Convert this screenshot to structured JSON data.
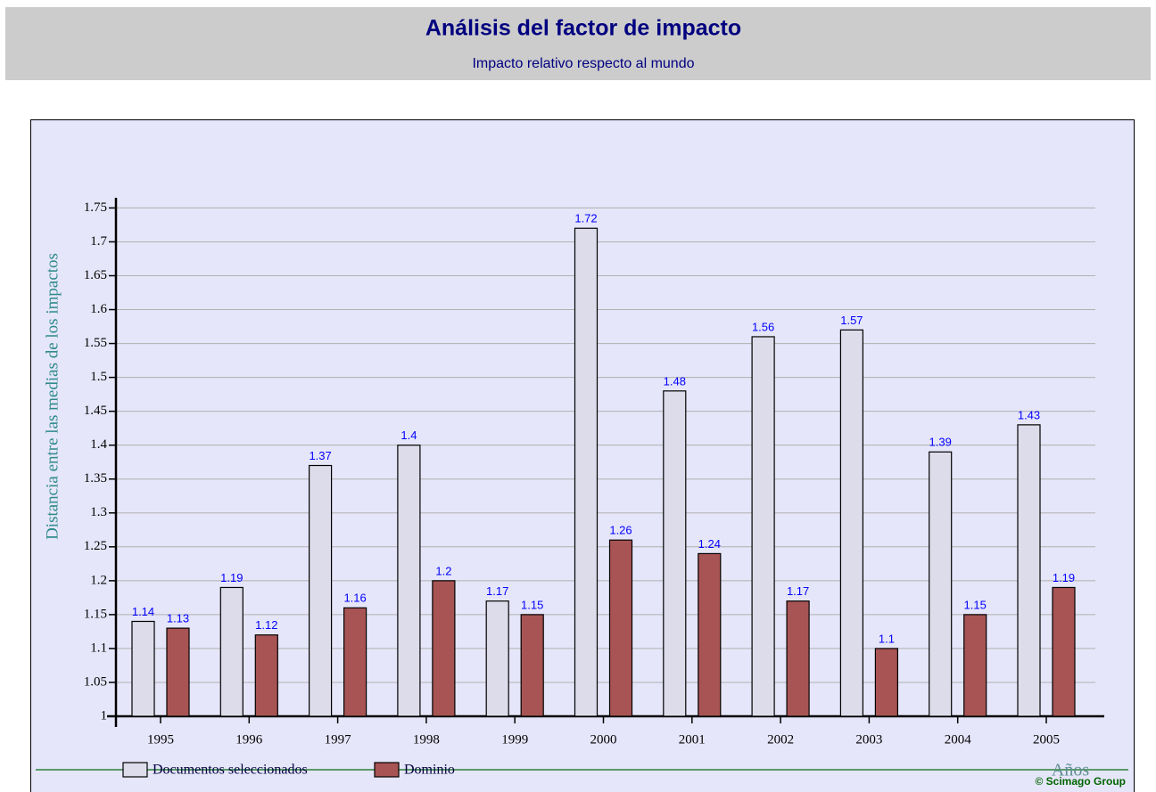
{
  "chart_data": {
    "type": "bar",
    "title": "Análisis del factor de impacto",
    "subtitle": "Impacto relativo respecto al mundo",
    "y_label": "Distancia entre las medias de los impactos",
    "x_label": "Años",
    "credit": "© Scimago Group",
    "categories": [
      "1995",
      "1996",
      "1997",
      "1998",
      "1999",
      "2000",
      "2001",
      "2002",
      "2003",
      "2004",
      "2005"
    ],
    "series": [
      {
        "name": "Documentos seleccionados",
        "color": "#dcdcea",
        "values": [
          1.14,
          1.19,
          1.37,
          1.4,
          1.17,
          1.72,
          1.48,
          1.56,
          1.57,
          1.39,
          1.43
        ]
      },
      {
        "name": "Dominio",
        "color": "#a85454",
        "values": [
          1.13,
          1.12,
          1.16,
          1.2,
          1.15,
          1.26,
          1.24,
          1.17,
          1.1,
          1.15,
          1.19
        ]
      }
    ],
    "ylim": [
      1,
      1.765
    ],
    "yticks": [
      1,
      1.05,
      1.1,
      1.15,
      1.2,
      1.25,
      1.3,
      1.35,
      1.4,
      1.45,
      1.5,
      1.55,
      1.6,
      1.65,
      1.7,
      1.75
    ],
    "grid": true
  }
}
